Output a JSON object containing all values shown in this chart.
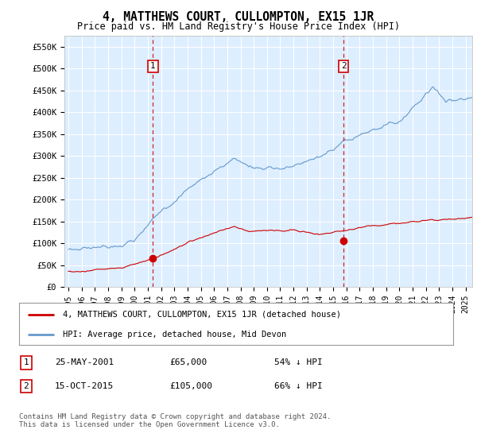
{
  "title": "4, MATTHEWS COURT, CULLOMPTON, EX15 1JR",
  "subtitle": "Price paid vs. HM Land Registry's House Price Index (HPI)",
  "ylabel_ticks": [
    "£0",
    "£50K",
    "£100K",
    "£150K",
    "£200K",
    "£250K",
    "£300K",
    "£350K",
    "£400K",
    "£450K",
    "£500K",
    "£550K"
  ],
  "ylim": [
    0,
    575000
  ],
  "xlim_start": 1994.7,
  "xlim_end": 2025.5,
  "transaction1": {
    "date_num": 2001.39,
    "price": 65000,
    "label": "1"
  },
  "transaction2": {
    "date_num": 2015.79,
    "price": 105000,
    "label": "2"
  },
  "legend_line1": "4, MATTHEWS COURT, CULLOMPTON, EX15 1JR (detached house)",
  "legend_line2": "HPI: Average price, detached house, Mid Devon",
  "annotation1_date": "25-MAY-2001",
  "annotation1_price": "£65,000",
  "annotation1_pct": "54% ↓ HPI",
  "annotation2_date": "15-OCT-2015",
  "annotation2_price": "£105,000",
  "annotation2_pct": "66% ↓ HPI",
  "footer": "Contains HM Land Registry data © Crown copyright and database right 2024.\nThis data is licensed under the Open Government Licence v3.0.",
  "line_color_red": "#cc0000",
  "line_color_blue": "#6699cc",
  "bg_color": "#ddeeff",
  "grid_color": "#ffffff"
}
